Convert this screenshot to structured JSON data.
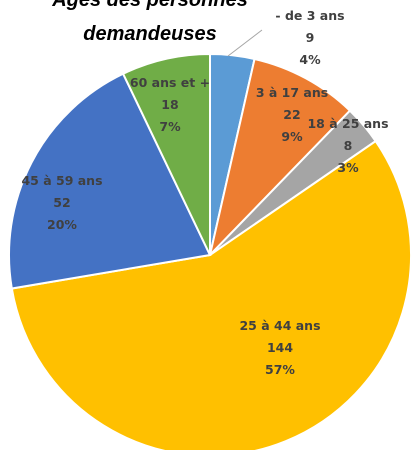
{
  "chart_data": {
    "type": "pie",
    "title": [
      "Âges des personnes",
      "demandeuses"
    ],
    "categories": [
      "- de 3 ans",
      "3 à 17 ans",
      "18 à 25 ans",
      "25 à 44 ans",
      "45 à 59 ans",
      "60 ans et +"
    ],
    "values": [
      9,
      22,
      8,
      144,
      52,
      18
    ],
    "value_labels": [
      "4%",
      "9%",
      "3%",
      "57%",
      "20%",
      "7%"
    ],
    "colors": [
      "#5b9bd5",
      "#ed7d31",
      "#a5a5a5",
      "#ffc000",
      "#4472c4",
      "#70ad47"
    ]
  }
}
